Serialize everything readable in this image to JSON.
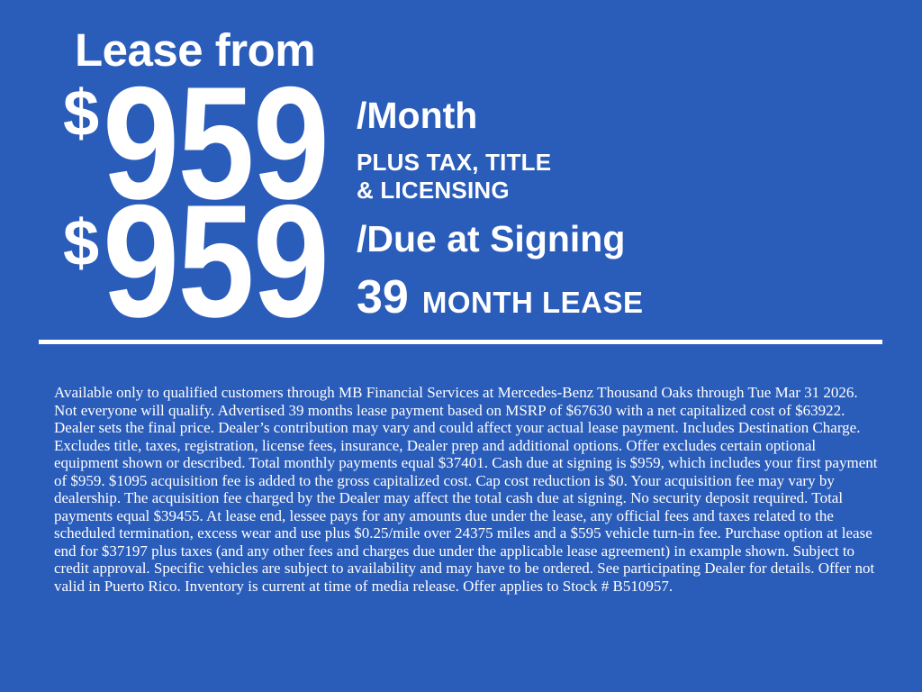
{
  "theme": {
    "background_color": "#2a5cba",
    "text_color": "#ffffff"
  },
  "offer": {
    "headline": "Lease from",
    "monthly": {
      "currency_symbol": "$",
      "amount": "959",
      "per_label": "/Month",
      "note_line1": "PLUS TAX, TITLE",
      "note_line2": "& LICENSING"
    },
    "due_at_signing": {
      "currency_symbol": "$",
      "amount": "959",
      "per_label": "/Due at Signing",
      "term_number": "39",
      "term_label": "MONTH LEASE"
    }
  },
  "disclaimer": "Available only to qualified customers through MB Financial Services at Mercedes-Benz Thousand Oaks through Tue Mar 31 2026. Not everyone will qualify. Advertised 39 months lease payment based on MSRP of $67630 with a net capitalized cost of $63922. Dealer sets the final price. Dealer’s contribution may vary and could affect your actual lease payment. Includes Destination Charge. Excludes title, taxes, registration, license fees, insurance, Dealer prep and additional options. Offer excludes certain optional equipment shown or described. Total monthly payments equal $37401. Cash due at signing is $959, which includes your first payment of $959. $1095 acquisition fee is added to the gross capitalized cost. Cap cost reduction is $0. Your acquisition fee may vary by dealership. The acquisition fee charged by the Dealer may affect the total cash due at signing. No security deposit required. Total payments equal $39455. At lease end, lessee pays for any amounts due under the lease, any official fees and taxes related to the scheduled termination, excess wear and use plus $0.25/mile over 24375 miles and a $595 vehicle turn-in fee. Purchase option at lease end for $37197 plus taxes (and any other fees and charges due under the applicable lease agreement) in example shown. Subject to credit approval. Specific vehicles are subject to availability and may have to be ordered. See participating Dealer for details. Offer not valid in Puerto Rico. Inventory is current at time of media release. Offer applies to Stock # B510957."
}
